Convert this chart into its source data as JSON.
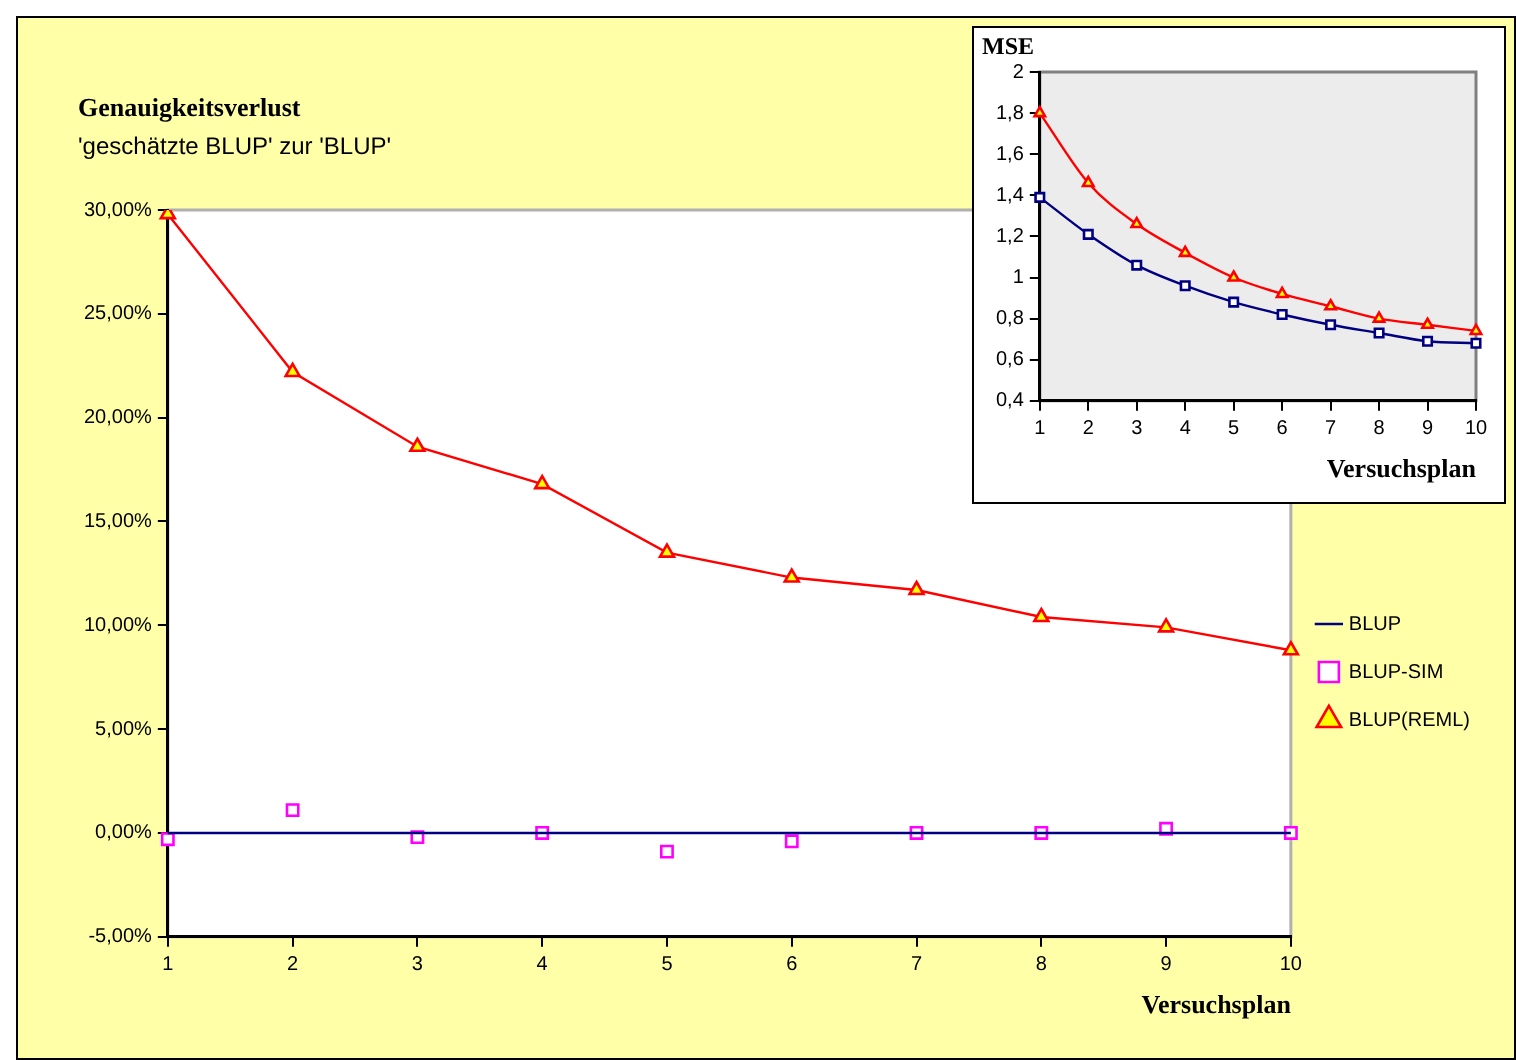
{
  "chart_data": [
    {
      "type": "line",
      "title": "Genauigkeitsverlust",
      "subtitle": "'geschätzte BLUP' zur 'BLUP'",
      "xlabel": "Versuchsplan",
      "categories": [
        "1",
        "2",
        "3",
        "4",
        "5",
        "6",
        "7",
        "8",
        "9",
        "10"
      ],
      "series": [
        {
          "name": "BLUP",
          "type": "line",
          "color": "#000080",
          "marker": "none",
          "values": [
            0,
            0,
            0,
            0,
            0,
            0,
            0,
            0,
            0,
            0
          ]
        },
        {
          "name": "BLUP-SIM",
          "type": "scatter",
          "color": "#ff00ff",
          "colors": [
            "#ffffff",
            "#ffffff",
            "#ffffff",
            "#ffffff",
            "#ffffff",
            "#ffffff",
            "#ffffff",
            "#ffffff",
            "#ffffff",
            "#ffffff"
          ],
          "marker": "square",
          "values": [
            -0.3,
            1.1,
            -0.2,
            0,
            -0.9,
            -0.4,
            0,
            0,
            0.2,
            0
          ]
        },
        {
          "name": "BLUP(REML)",
          "type": "line",
          "color": "#ff0000",
          "colors": [
            "#ffff00",
            "#ffff00",
            "#ffff00",
            "#ffff00",
            "#ffff00",
            "#ffff00",
            "#ffff00",
            "#ffff00",
            "#ffff00",
            "#ffff00"
          ],
          "marker": "triangle",
          "values": [
            29.8,
            22.2,
            18.6,
            16.8,
            13.5,
            12.3,
            11.7,
            10.4,
            9.9,
            8.8
          ]
        }
      ],
      "ylim": [
        -5,
        30
      ],
      "yticks": [
        {
          "value": -5,
          "label": "-5,00%"
        },
        {
          "value": 0,
          "label": "0,00%"
        },
        {
          "value": 5,
          "label": "5,00%"
        },
        {
          "value": 10,
          "label": "10,00%"
        },
        {
          "value": 15,
          "label": "15,00%"
        },
        {
          "value": 20,
          "label": "20,00%"
        },
        {
          "value": 25,
          "label": "25,00%"
        },
        {
          "value": 30,
          "label": "30,00%"
        }
      ],
      "grid": false,
      "legend": "right"
    },
    {
      "type": "line",
      "ylabel": "MSE",
      "xlabel": "Versuchsplan",
      "categories": [
        "1",
        "2",
        "3",
        "4",
        "5",
        "6",
        "7",
        "8",
        "9",
        "10"
      ],
      "series": [
        {
          "color": "#000080",
          "colors": [
            "#ffffff",
            "#ffffff",
            "#ffffff",
            "#ffffff",
            "#ffffff",
            "#ffffff",
            "#ffffff",
            "#ffffff",
            "#ffffff",
            "#ffffff"
          ],
          "marker": "square",
          "values": [
            1.39,
            1.21,
            1.06,
            0.96,
            0.88,
            0.82,
            0.77,
            0.73,
            0.69,
            0.68
          ]
        },
        {
          "color": "#ff0000",
          "colors": [
            "#ffff00",
            "#ffff00",
            "#ffff00",
            "#ffff00",
            "#ffff00",
            "#ffff00",
            "#ffff00",
            "#ffff00",
            "#ffff00",
            "#ffff00"
          ],
          "marker": "triangle",
          "values": [
            1.8,
            1.46,
            1.26,
            1.12,
            1.0,
            0.92,
            0.86,
            0.8,
            0.77,
            0.74
          ]
        }
      ],
      "ylim": [
        0.4,
        2
      ],
      "yticks": [
        {
          "value": 0.4,
          "label": "0,4"
        },
        {
          "value": 0.6,
          "label": "0,6"
        },
        {
          "value": 0.8,
          "label": "0,8"
        },
        1,
        {
          "value": 1.2,
          "label": "1,2"
        },
        {
          "value": 1.4,
          "label": "1,4"
        },
        {
          "value": 1.6,
          "label": "1,6"
        },
        {
          "value": 1.8,
          "label": "1,8"
        },
        2
      ],
      "grid": false,
      "legend": false
    }
  ]
}
